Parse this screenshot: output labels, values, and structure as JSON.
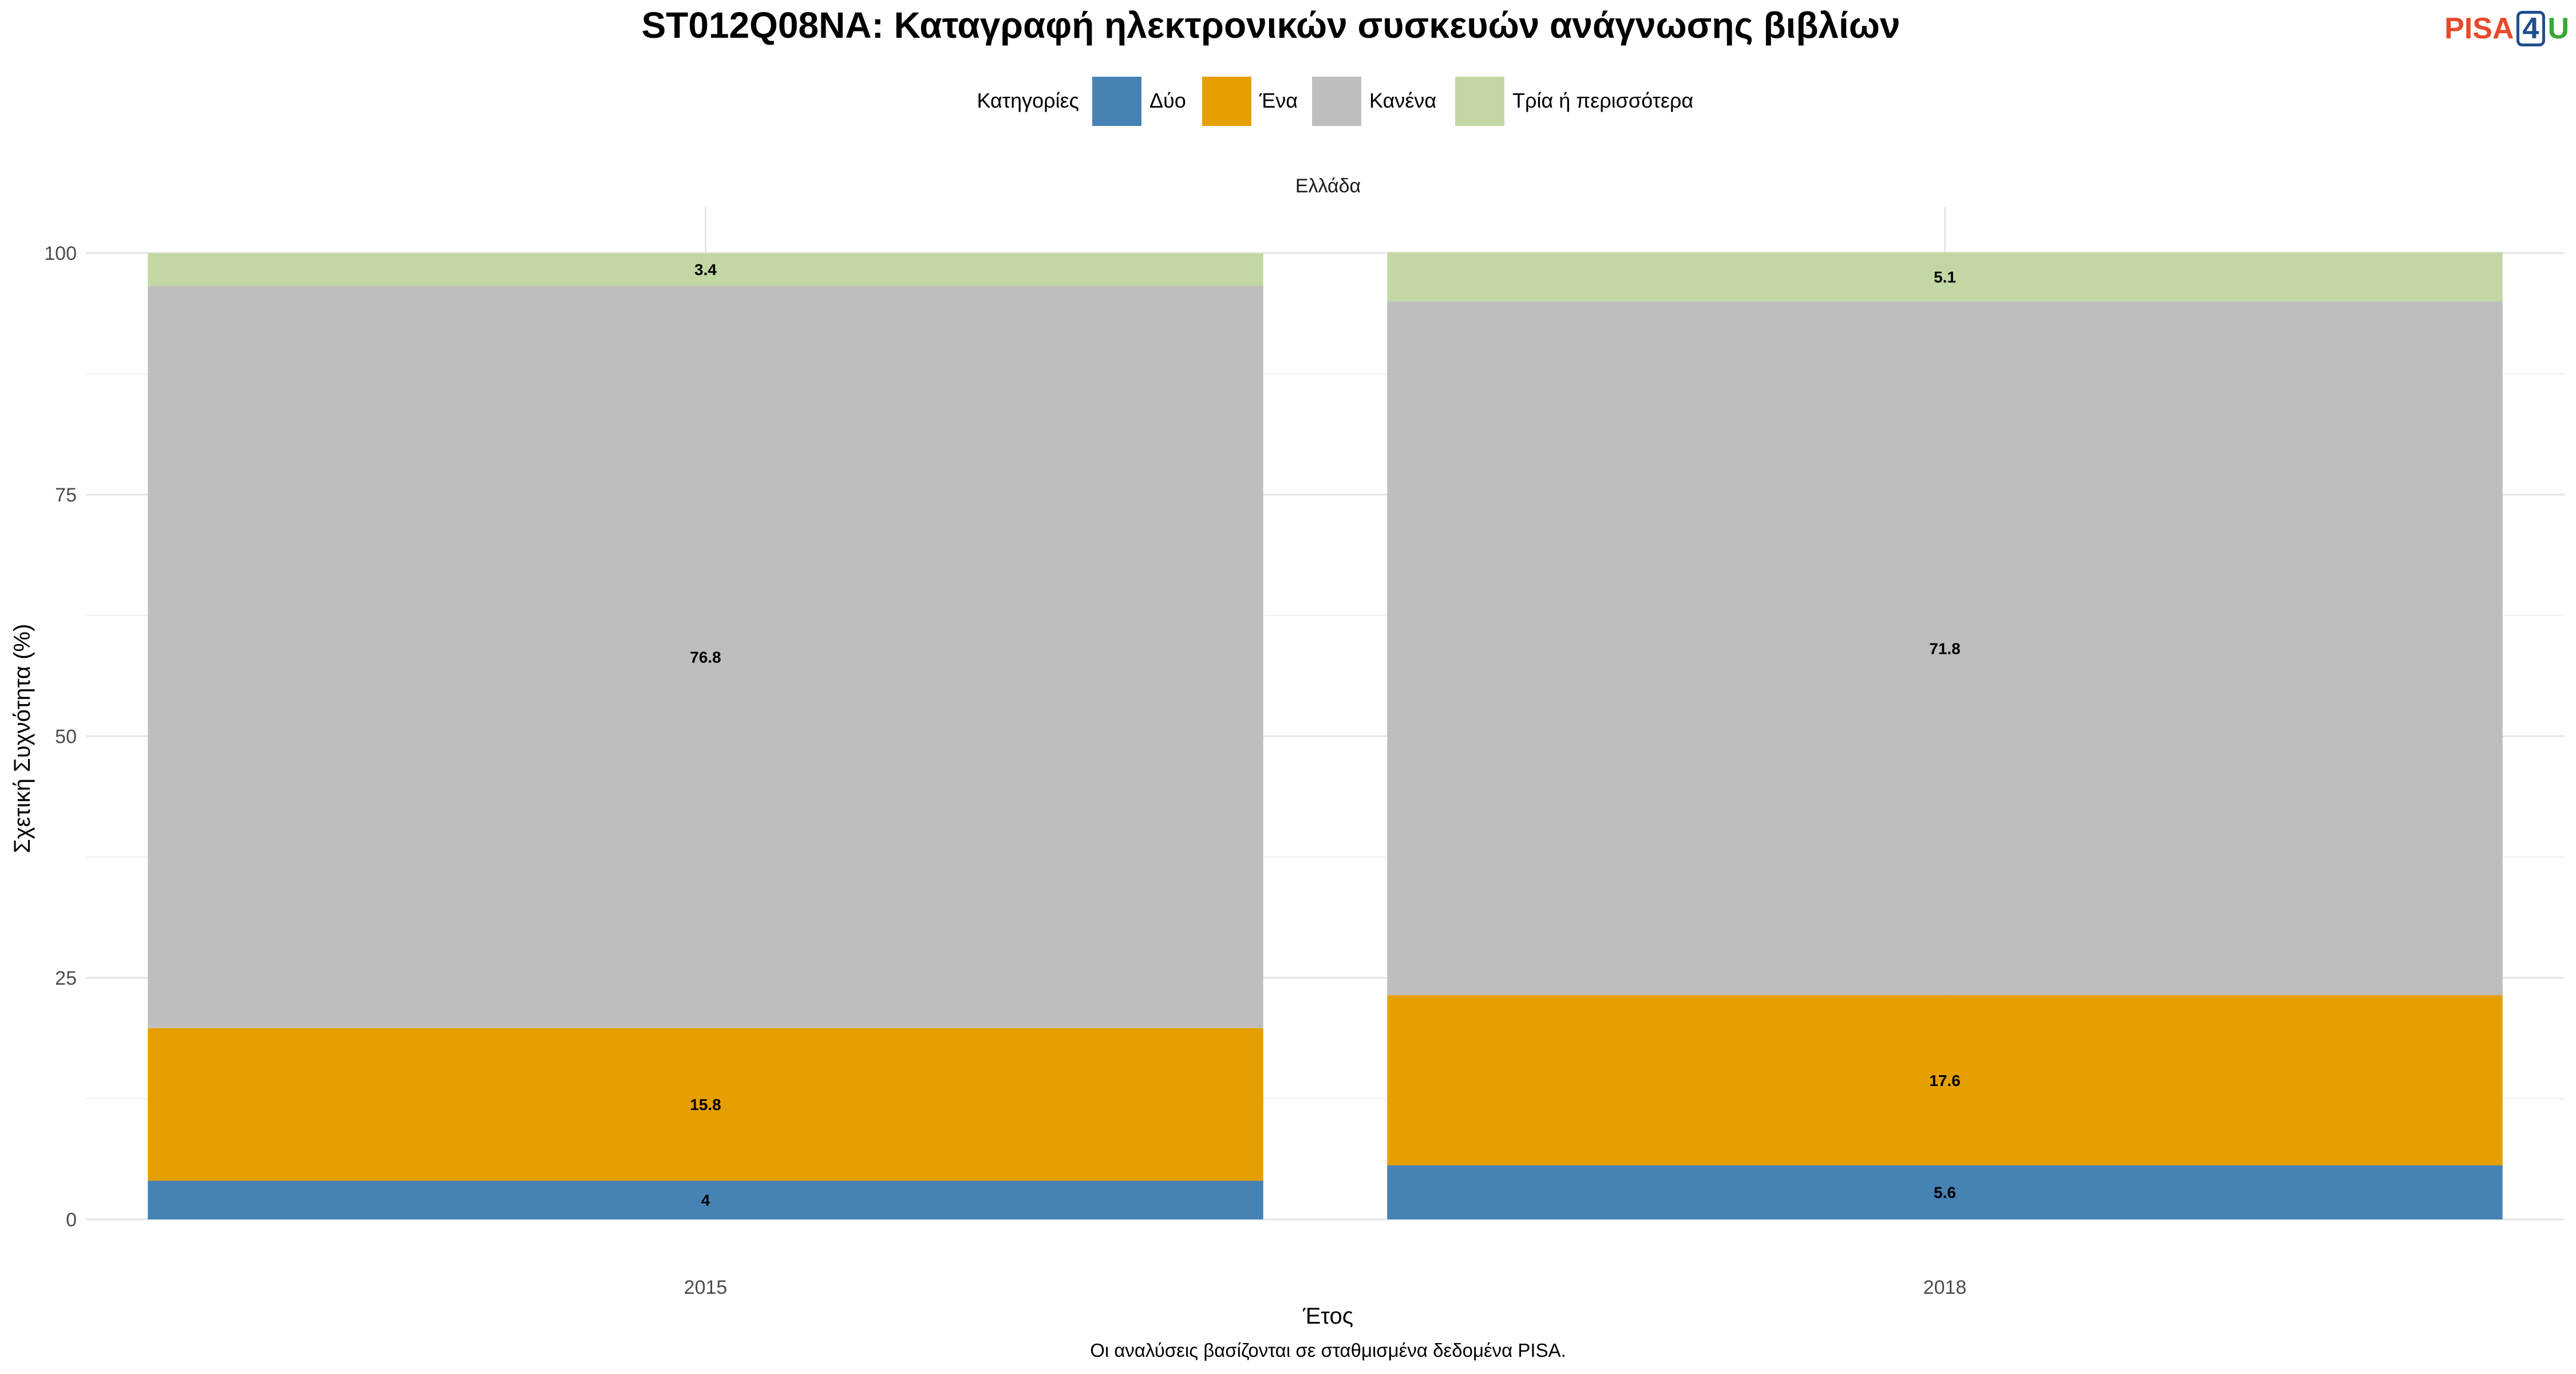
{
  "logo": {
    "part1": "PISA",
    "part2": "4",
    "part3": "U"
  },
  "chart_data": {
    "type": "bar",
    "stacked": true,
    "title": "ST012Q08NA: Καταγραφή ηλεκτρονικών συσκευών ανάγνωσης βιβλίων",
    "facet_label": "Ελλάδα",
    "xlabel": "Έτος",
    "ylabel": "Σχετική Συχνότητα (%)",
    "caption": "Οι αναλύσεις βασίζονται σε σταθμισμένα δεδομένα PISA.",
    "legend_title": "Κατηγορίες",
    "legend_position": "top",
    "categories": [
      "2015",
      "2018"
    ],
    "ylim": [
      0,
      100
    ],
    "yticks": [
      0,
      25,
      50,
      75,
      100
    ],
    "grid": true,
    "series": [
      {
        "name": "Δύο",
        "color": "#4682b4",
        "values": [
          4,
          5.6
        ],
        "labels": [
          "4",
          "5.6"
        ]
      },
      {
        "name": "Ένα",
        "color": "#e69f00",
        "values": [
          15.8,
          17.6
        ],
        "labels": [
          "15.8",
          "17.6"
        ]
      },
      {
        "name": "Κανένα",
        "color": "#bebebe",
        "values": [
          76.8,
          71.8
        ],
        "labels": [
          "76.8",
          "71.8"
        ]
      },
      {
        "name": "Τρία ή περισσότερα",
        "color": "#c3d7a4",
        "values": [
          3.4,
          5.1
        ],
        "labels": [
          "3.4",
          "5.1"
        ]
      }
    ]
  }
}
